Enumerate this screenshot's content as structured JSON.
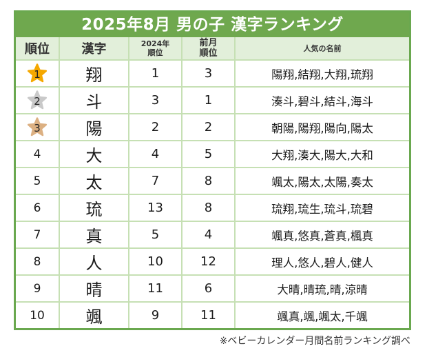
{
  "title": "2025年8月 男の子 漢字ランキング",
  "colors": {
    "title_bg": "#6fa84e",
    "border": "#6aa84f",
    "header_bg": "#e2efda",
    "grid": "#c6e0b4",
    "gold": "#f5a800",
    "silver": "#c9c9c9",
    "bronze": "#dcb082"
  },
  "headers": {
    "rank": "順位",
    "kanji": "漢字",
    "prev_year_line1": "2024年",
    "prev_year_line2": "順位",
    "prev_month_line1": "前月",
    "prev_month_line2": "順位",
    "names": "人気の名前"
  },
  "rows": [
    {
      "rank": "1",
      "medal": "gold",
      "kanji": "翔",
      "rank_2024": "1",
      "prev_month": "3",
      "names": "陽翔,結翔,大翔,琉翔"
    },
    {
      "rank": "2",
      "medal": "silver",
      "kanji": "斗",
      "rank_2024": "3",
      "prev_month": "1",
      "names": "湊斗,碧斗,結斗,海斗"
    },
    {
      "rank": "3",
      "medal": "bronze",
      "kanji": "陽",
      "rank_2024": "2",
      "prev_month": "2",
      "names": "朝陽,陽翔,陽向,陽太"
    },
    {
      "rank": "4",
      "medal": "",
      "kanji": "大",
      "rank_2024": "4",
      "prev_month": "5",
      "names": "大翔,湊大,陽大,大和"
    },
    {
      "rank": "5",
      "medal": "",
      "kanji": "太",
      "rank_2024": "7",
      "prev_month": "8",
      "names": "颯太,陽太,太陽,奏太"
    },
    {
      "rank": "6",
      "medal": "",
      "kanji": "琉",
      "rank_2024": "13",
      "prev_month": "8",
      "names": "琉翔,琉生,琉斗,琉碧"
    },
    {
      "rank": "7",
      "medal": "",
      "kanji": "真",
      "rank_2024": "5",
      "prev_month": "4",
      "names": "颯真,悠真,蒼真,楓真"
    },
    {
      "rank": "8",
      "medal": "",
      "kanji": "人",
      "rank_2024": "10",
      "prev_month": "12",
      "names": "理人,悠人,碧人,健人"
    },
    {
      "rank": "9",
      "medal": "",
      "kanji": "晴",
      "rank_2024": "11",
      "prev_month": "6",
      "names": "大晴,晴琉,晴,涼晴"
    },
    {
      "rank": "10",
      "medal": "",
      "kanji": "颯",
      "rank_2024": "9",
      "prev_month": "11",
      "names": "颯真,颯,颯太,千颯"
    }
  ],
  "footnote": "※ベビーカレンダー月間名前ランキング調べ"
}
